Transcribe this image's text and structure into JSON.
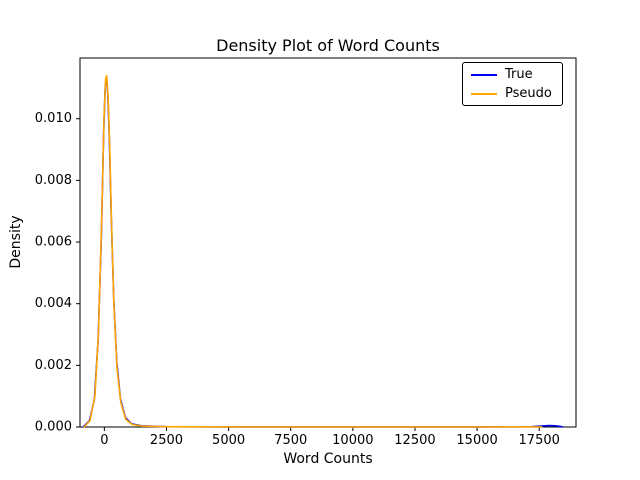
{
  "chart_data": {
    "type": "line",
    "title": "Density Plot of Word Counts",
    "xlabel": "Word Counts",
    "ylabel": "Density",
    "xlim": [
      -980,
      18980
    ],
    "ylim": [
      0,
      0.01197
    ],
    "grid": false,
    "legend_position": "upper right",
    "xticks": {
      "values": [
        0,
        2500,
        5000,
        7500,
        10000,
        12500,
        15000,
        17500
      ],
      "labels": [
        "0",
        "2500",
        "5000",
        "7500",
        "10000",
        "12500",
        "15000",
        "17500"
      ]
    },
    "yticks": {
      "values": [
        0,
        0.002,
        0.004,
        0.006,
        0.008,
        0.01
      ],
      "labels": [
        "0.000",
        "0.002",
        "0.004",
        "0.006",
        "0.008",
        "0.010"
      ]
    },
    "series": [
      {
        "name": "True",
        "color": "#0000ee",
        "x": [
          -850,
          -600,
          -400,
          -250,
          -120,
          -30,
          40,
          90,
          140,
          200,
          280,
          380,
          500,
          650,
          850,
          1100,
          1500,
          2500,
          4000,
          6000,
          9000,
          12000,
          15000,
          16500,
          17200,
          17600,
          17900,
          18150,
          18350,
          18450
        ],
        "y": [
          0.0,
          0.0002,
          0.0009,
          0.0028,
          0.0062,
          0.0095,
          0.0111,
          0.0113,
          0.0108,
          0.0094,
          0.0068,
          0.0041,
          0.0021,
          0.0009,
          0.0003,
          0.0001,
          4e-05,
          1e-05,
          6e-06,
          4e-06,
          3e-06,
          3e-06,
          4e-06,
          6e-06,
          1e-05,
          3e-05,
          5e-05,
          4e-05,
          2e-05,
          0.0
        ]
      },
      {
        "name": "Pseudo",
        "color": "#ffa500",
        "x": [
          -820,
          -580,
          -380,
          -240,
          -110,
          -20,
          50,
          95,
          150,
          210,
          290,
          390,
          510,
          660,
          860,
          1120,
          1520,
          2500,
          4000,
          6000,
          9000,
          12000,
          14000,
          15500,
          16500,
          17300,
          17600
        ],
        "y": [
          0.0,
          0.0002,
          0.001,
          0.003,
          0.0066,
          0.0099,
          0.0113,
          0.0114,
          0.0107,
          0.0092,
          0.0065,
          0.0039,
          0.0019,
          0.0008,
          0.00025,
          8e-05,
          3e-05,
          1e-05,
          5e-06,
          3e-06,
          2e-06,
          2e-06,
          3e-06,
          4e-06,
          5e-06,
          3e-06,
          0.0
        ]
      }
    ]
  }
}
